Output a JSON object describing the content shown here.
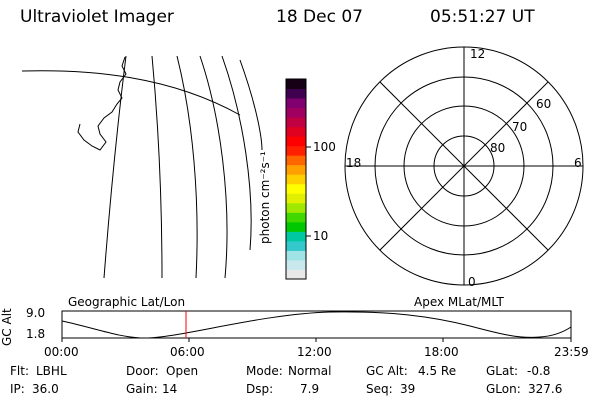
{
  "header": {
    "title": "Ultraviolet Imager",
    "date": "18 Dec 07",
    "time": "05:51:27 UT"
  },
  "colorbar": {
    "label": "photon cm⁻²s⁻¹",
    "ticks": [
      "100",
      "10"
    ],
    "colors": [
      "#e8e8e8",
      "#c9e8ee",
      "#9fe3e6",
      "#33c8cc",
      "#00c8a0",
      "#00c800",
      "#40d800",
      "#a0e800",
      "#e0f000",
      "#ffff00",
      "#ffd000",
      "#ffa000",
      "#ff6600",
      "#ff2000",
      "#ff0000",
      "#e00020",
      "#c00040",
      "#a00060",
      "#800070",
      "#400050",
      "#150015"
    ]
  },
  "polar": {
    "mlt_labels": {
      "top": "12",
      "bottom": "0",
      "left": "18",
      "right": "6"
    },
    "lat_labels": [
      "60",
      "70",
      "80"
    ]
  },
  "timeline": {
    "left_title": "Geographic Lat/Lon",
    "right_title": "Apex MLat/MLT",
    "axis_label": "GC Alt",
    "y_ticks": [
      "9.0",
      "1.8"
    ],
    "x_ticks": [
      "00:00",
      "06:00",
      "12:00",
      "18:00",
      "23:59"
    ],
    "marker_color": "#ff0000"
  },
  "status": {
    "row1": [
      {
        "label": "Flt:",
        "value": "LBHL"
      },
      {
        "label": "Door:",
        "value": "Open"
      },
      {
        "label": "Mode:",
        "value": "Normal"
      },
      {
        "label": "GC Alt:",
        "value": "4.5 Re"
      },
      {
        "label": "GLat:",
        "value": "-0.8"
      }
    ],
    "row2": [
      {
        "label": "IP:",
        "value": "36.0"
      },
      {
        "label": "Gain:",
        "value": "14"
      },
      {
        "label": "Dsp:",
        "value": "7.9"
      },
      {
        "label": "Seq:",
        "value": "39"
      },
      {
        "label": "GLon:",
        "value": "327.6"
      }
    ]
  }
}
